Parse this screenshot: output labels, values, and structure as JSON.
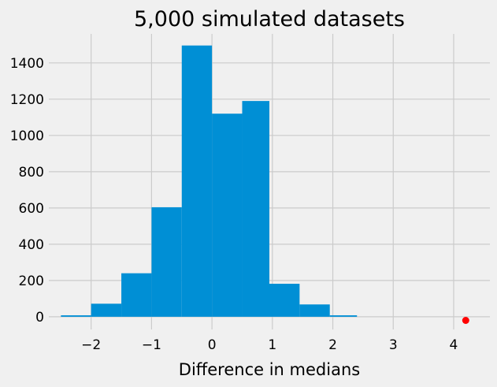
{
  "chart_data": {
    "type": "bar",
    "title": "5,000 simulated datasets",
    "xlabel": "Difference in medians",
    "ylabel": "",
    "xlim": [
      -2.7,
      4.6
    ],
    "ylim": [
      -70,
      1560
    ],
    "x_ticks": [
      -2,
      -1,
      0,
      1,
      2,
      3,
      4
    ],
    "x_tick_labels": [
      "−2",
      "−1",
      "0",
      "1",
      "2",
      "3",
      "4"
    ],
    "y_ticks": [
      0,
      200,
      400,
      600,
      800,
      1000,
      1200,
      1400
    ],
    "y_tick_labels": [
      "0",
      "200",
      "400",
      "600",
      "800",
      "1000",
      "1200",
      "1400"
    ],
    "grid": true,
    "bins": [
      {
        "start": -2.5,
        "end": -2.0,
        "count": 8
      },
      {
        "start": -2.0,
        "end": -1.5,
        "count": 72
      },
      {
        "start": -1.5,
        "end": -1.0,
        "count": 240
      },
      {
        "start": -1.0,
        "end": -0.5,
        "count": 604
      },
      {
        "start": -0.5,
        "end": 0.0,
        "count": 1496
      },
      {
        "start": 0.0,
        "end": 0.5,
        "count": 1120
      },
      {
        "start": 0.5,
        "end": 0.95,
        "count": 1190
      },
      {
        "start": 0.95,
        "end": 1.45,
        "count": 182
      },
      {
        "start": 1.45,
        "end": 1.95,
        "count": 68
      },
      {
        "start": 1.95,
        "end": 2.4,
        "count": 8
      }
    ],
    "marker": {
      "x": 4.2,
      "y": -20
    },
    "colors": {
      "bar": "#008fd5",
      "marker": "#ff0000",
      "grid": "#cbcbcb",
      "background": "#f0f0f0"
    }
  }
}
